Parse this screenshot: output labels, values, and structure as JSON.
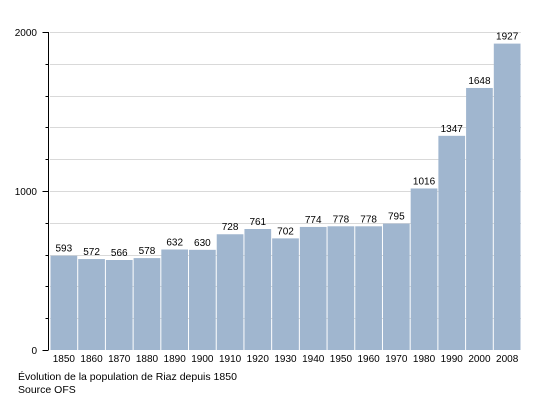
{
  "chart_data": {
    "type": "bar",
    "categories": [
      "1850",
      "1860",
      "1870",
      "1880",
      "1890",
      "1900",
      "1910",
      "1920",
      "1930",
      "1940",
      "1950",
      "1960",
      "1970",
      "1980",
      "1990",
      "2000",
      "2008"
    ],
    "values": [
      593,
      572,
      566,
      578,
      632,
      630,
      728,
      761,
      702,
      774,
      778,
      778,
      795,
      1016,
      1347,
      1648,
      1927
    ],
    "ylim": [
      0,
      2000
    ],
    "yticks_labeled": [
      0,
      1000,
      2000
    ],
    "ytick_labels": [
      "0",
      "1000",
      "2000"
    ],
    "grid": true,
    "bar_color": "#a0b6cf",
    "data_labels": true
  },
  "caption": {
    "line1": "Évolution de la population de Riaz depuis 1850",
    "line2": "Source OFS"
  }
}
